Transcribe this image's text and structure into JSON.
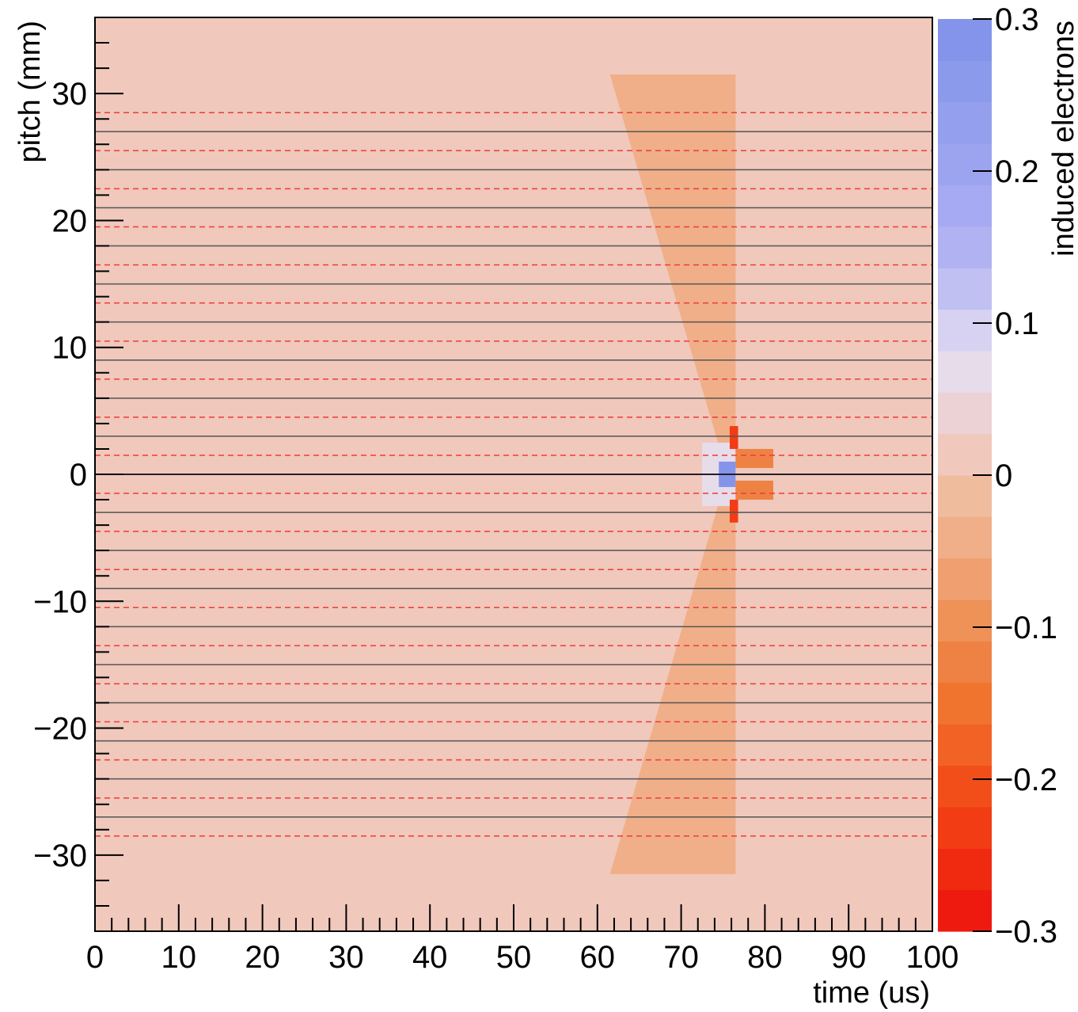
{
  "chart_data": {
    "type": "heatmap",
    "xlabel": "time (us)",
    "ylabel": "pitch (mm)",
    "zlabel": "induced electrons",
    "xlim": [
      0,
      100
    ],
    "ylim": [
      -36,
      36
    ],
    "zlim": [
      -0.3,
      0.3
    ],
    "x_ticks": [
      0,
      10,
      20,
      30,
      40,
      50,
      60,
      70,
      80,
      90,
      100
    ],
    "x_tick_labels": [
      "0",
      "10",
      "20",
      "30",
      "40",
      "50",
      "60",
      "70",
      "80",
      "90",
      "100"
    ],
    "y_ticks": [
      -30,
      -20,
      -10,
      0,
      10,
      20,
      30
    ],
    "y_tick_labels": [
      "−30",
      "−20",
      "−10",
      "0",
      "10",
      "20",
      "30"
    ],
    "z_ticks": [
      -0.3,
      -0.2,
      -0.1,
      0,
      0.1,
      0.2,
      0.3
    ],
    "z_tick_labels": [
      "−0.3",
      "−0.2",
      "−0.1",
      "0",
      "0.1",
      "0.2",
      "0.3"
    ],
    "background_value": 0.0,
    "colorbar_colors": [
      "#ee1a0f",
      "#f02a10",
      "#f23c14",
      "#f24e1a",
      "#f26224",
      "#f0732e",
      "#ee8244",
      "#ee9258",
      "#f0a070",
      "#f0af88",
      "#f0bc9e",
      "#f0c8bc",
      "#ecd2d4",
      "#e6dcea",
      "#d8d2f2",
      "#c0c0f2",
      "#b0b2f2",
      "#a6aaf2",
      "#9ca4f0",
      "#94a0ee",
      "#8c9aec",
      "#8494ea"
    ],
    "collection_wire_pitch_mm": [
      -27,
      -24,
      -21,
      -18,
      -15,
      -12,
      -9,
      -6,
      -3,
      0,
      3,
      6,
      9,
      12,
      15,
      18,
      21,
      24,
      27
    ],
    "induction_wire_pitch_mm": [
      -28.5,
      -25.5,
      -22.5,
      -19.5,
      -16.5,
      -13.5,
      -10.5,
      -7.5,
      -4.5,
      -1.5,
      1.5,
      4.5,
      7.5,
      10.5,
      13.5,
      16.5,
      19.5,
      22.5,
      25.5,
      28.5
    ],
    "regions": [
      {
        "name": "induced-band",
        "value": -0.04,
        "pitch_range": [
          -31.5,
          31.5
        ],
        "time_start_at_edge": 61.5,
        "time_start_at_center": 75.5,
        "time_end": 76.5
      },
      {
        "name": "central-positive-core",
        "value": 0.28,
        "time_range": [
          74.5,
          76.5
        ],
        "pitch_range": [
          -1.0,
          1.0
        ]
      },
      {
        "name": "central-positive-halo",
        "value": 0.06,
        "time_range": [
          72.5,
          76.5
        ],
        "pitch_range": [
          -2.5,
          2.5
        ]
      },
      {
        "name": "neighbor-strong-negative",
        "value": -0.24,
        "time_range": [
          75.8,
          76.8
        ],
        "pitch_ranges": [
          [
            2.0,
            3.8
          ],
          [
            -3.8,
            -2.0
          ]
        ]
      },
      {
        "name": "neighbor-tails",
        "value": -0.12,
        "time_range": [
          76.5,
          81.0
        ],
        "pitch_ranges": [
          [
            0.5,
            2.0
          ],
          [
            -2.0,
            -0.5
          ]
        ]
      }
    ]
  }
}
